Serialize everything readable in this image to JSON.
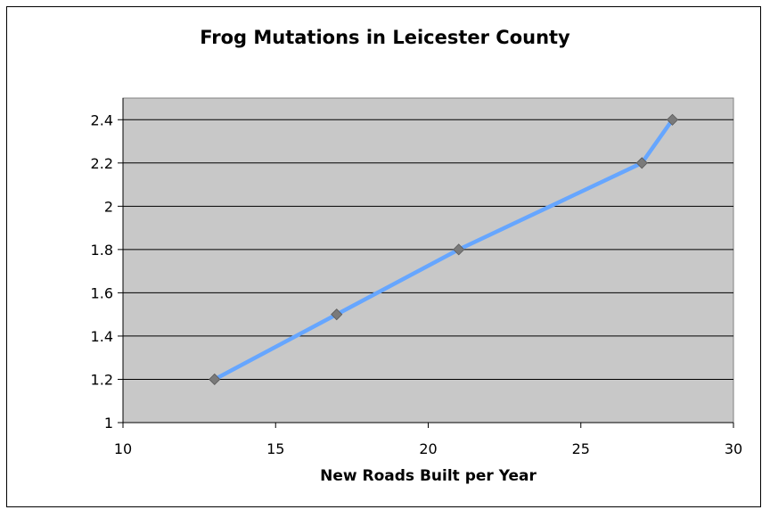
{
  "chart_data": {
    "type": "line",
    "title": "Frog Mutations in Leicester County",
    "xlabel": "New Roads Built per Year",
    "ylabel": "",
    "xlim": [
      10,
      30
    ],
    "ylim": [
      1,
      2.4
    ],
    "ylim_plot_top": 2.5,
    "x_ticks": [
      10,
      15,
      20,
      25,
      30
    ],
    "y_ticks": [
      1,
      1.2,
      1.4,
      1.6,
      1.8,
      2,
      2.2,
      2.4
    ],
    "x_tick_labels": [
      "10",
      "15",
      "20",
      "25",
      "30"
    ],
    "y_tick_labels": [
      "1",
      "1.2",
      "1.4",
      "1.6",
      "1.8",
      "2",
      "2.2",
      "2.4"
    ],
    "grid": true,
    "legend": "none",
    "series": [
      {
        "x": [
          13,
          17,
          21,
          27,
          28
        ],
        "y": [
          1.2,
          1.5,
          1.8,
          2.2,
          2.4
        ]
      }
    ],
    "colors": {
      "line": "#66A6FF",
      "marker": "#7A7A7A",
      "plot_background": "#C8C8C8",
      "gridline": "#000000"
    }
  }
}
